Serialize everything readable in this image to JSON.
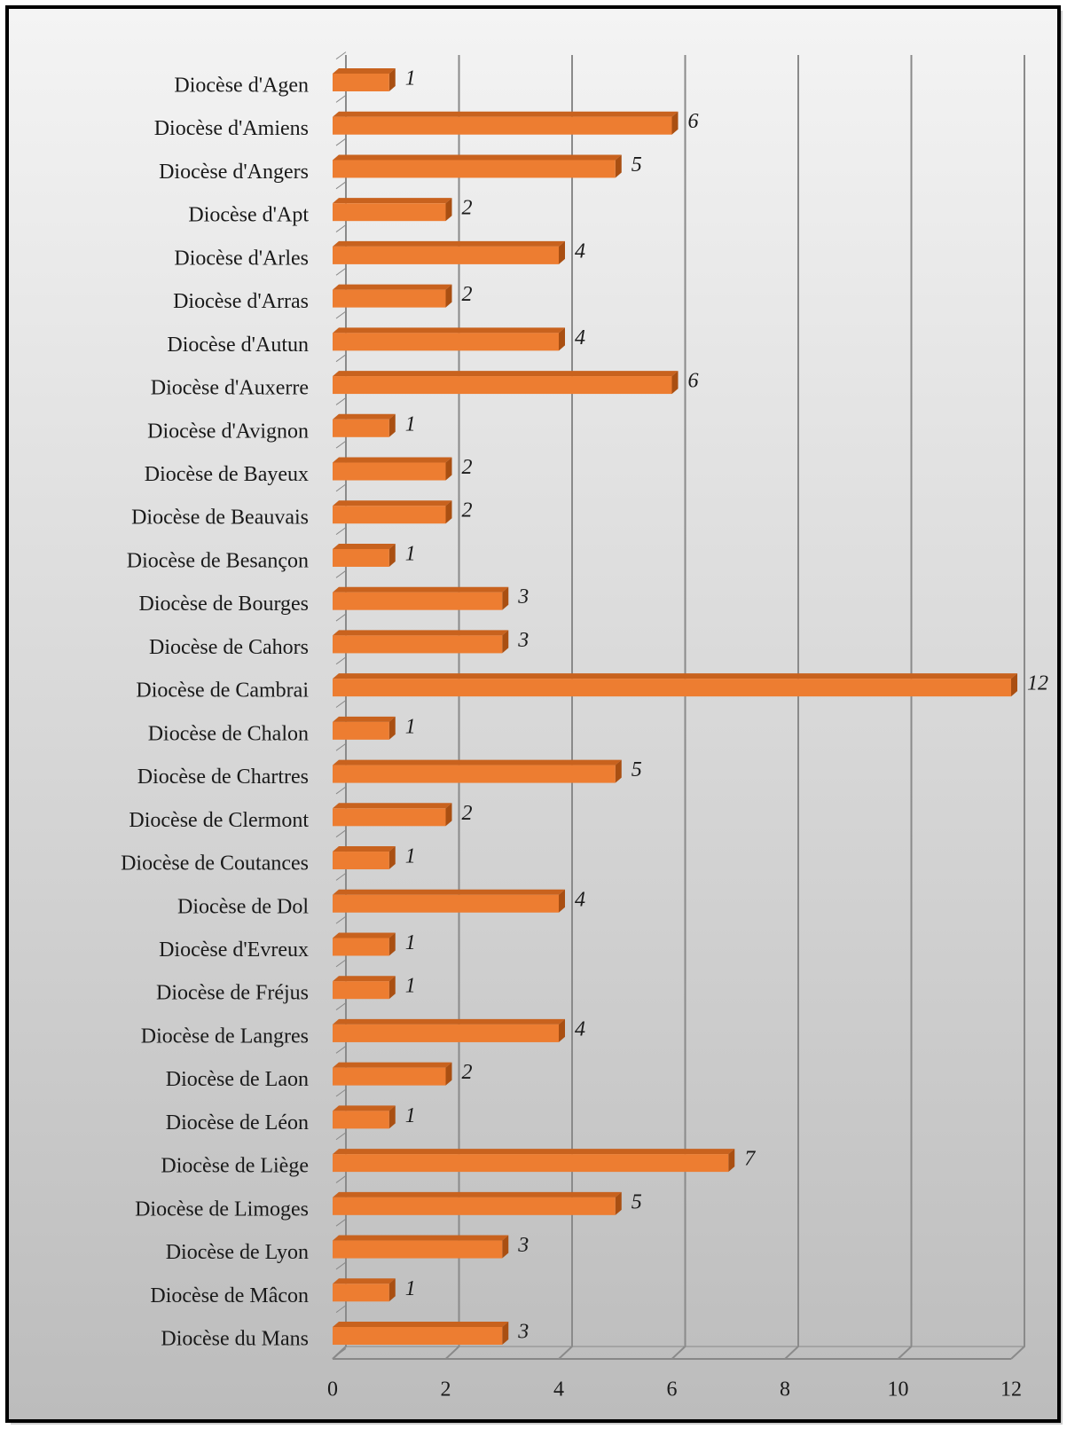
{
  "chart_data": {
    "type": "bar",
    "orientation": "horizontal",
    "categories": [
      "Diocèse d'Agen",
      "Diocèse d'Amiens",
      "Diocèse d'Angers",
      "Diocèse d'Apt",
      "Diocèse d'Arles",
      "Diocèse d'Arras",
      "Diocèse d'Autun",
      "Diocèse d'Auxerre",
      "Diocèse d'Avignon",
      "Diocèse de Bayeux",
      "Diocèse de Beauvais",
      "Diocèse de Besançon",
      "Diocèse de Bourges",
      "Diocèse de Cahors",
      "Diocèse de Cambrai",
      "Diocèse de Chalon",
      "Diocèse de Chartres",
      "Diocèse de Clermont",
      "Diocèse de Coutances",
      "Diocèse de Dol",
      "Diocèse d'Evreux",
      "Diocèse de Fréjus",
      "Diocèse de Langres",
      "Diocèse de Laon",
      "Diocèse de Léon",
      "Diocèse de Liège",
      "Diocèse de Limoges",
      "Diocèse de Lyon",
      "Diocèse de Mâcon",
      "Diocèse du Mans"
    ],
    "values": [
      1,
      6,
      5,
      2,
      4,
      2,
      4,
      6,
      1,
      2,
      2,
      1,
      3,
      3,
      12,
      1,
      5,
      2,
      1,
      4,
      1,
      1,
      4,
      2,
      1,
      7,
      5,
      3,
      1,
      3
    ],
    "color": "#ed7d31",
    "xlim": [
      0,
      12
    ],
    "xticks": [
      0,
      2,
      4,
      6,
      8,
      10,
      12
    ],
    "grid": true
  }
}
